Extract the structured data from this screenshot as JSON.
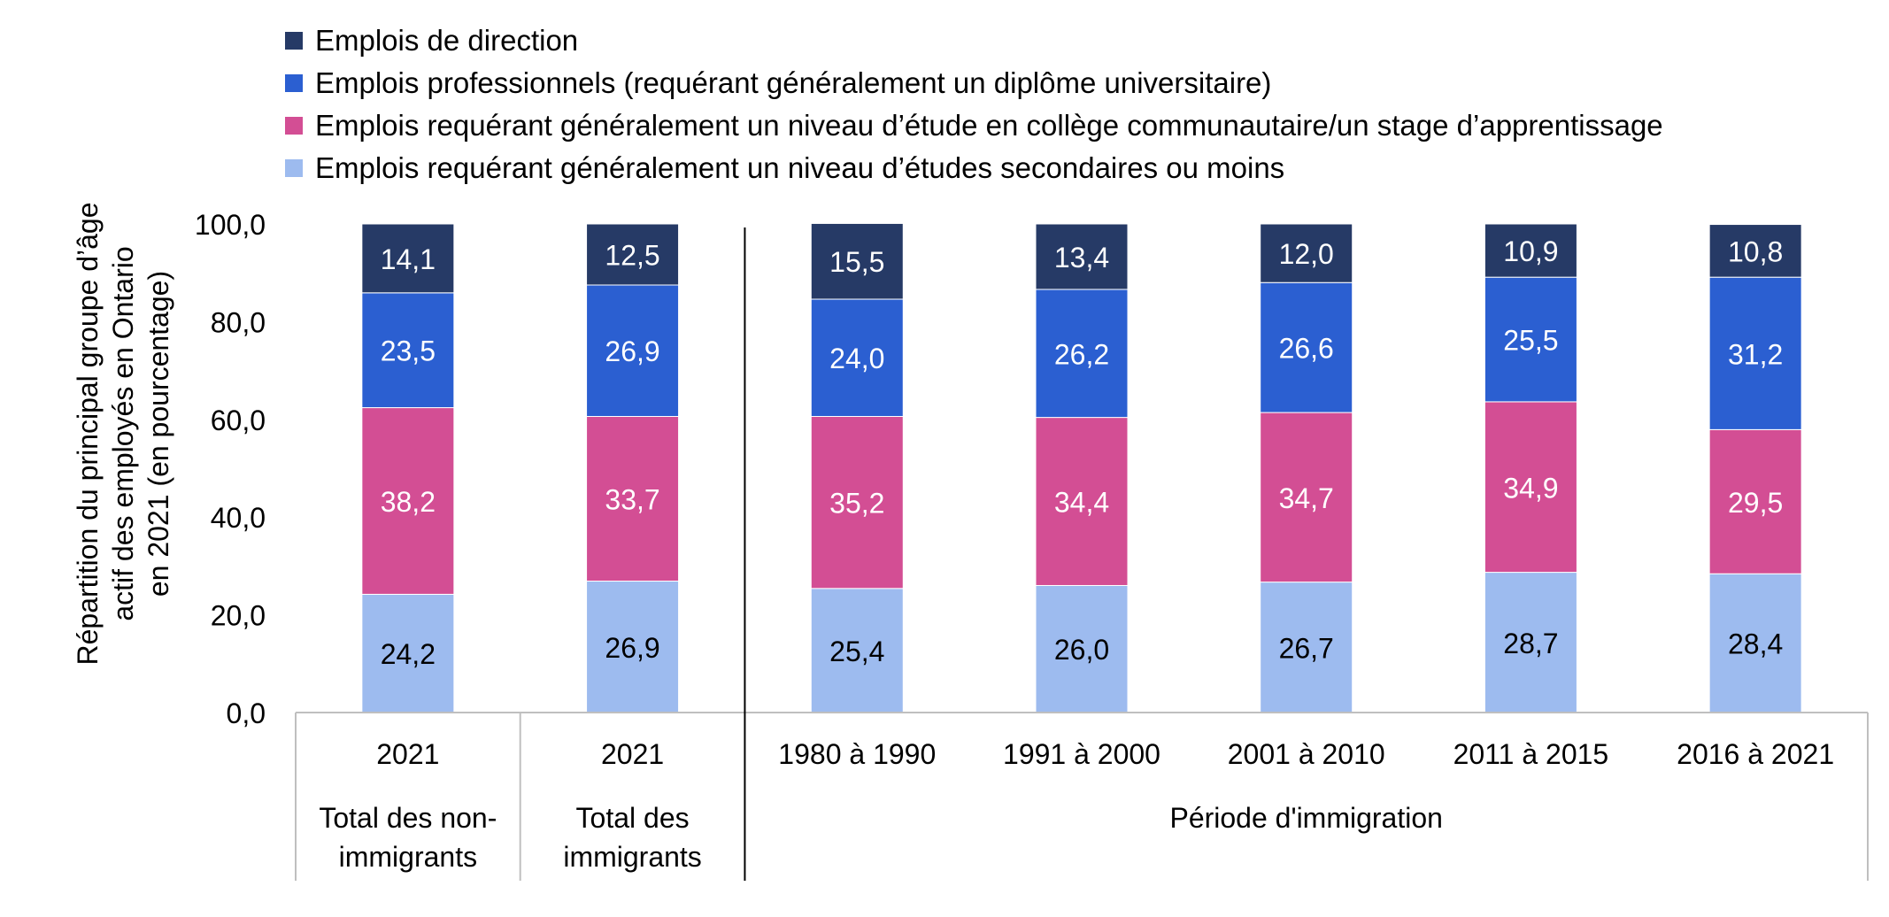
{
  "chart_data": {
    "type": "bar",
    "stacked": true,
    "ylabel": "Répartition du principal groupe d’âge actif des employés en Ontario en 2021 (en pourcentage)",
    "ylabel_lines": [
      "Répartition du principal groupe d’âge",
      "actif des employés en Ontario",
      "en 2021 (en pourcentage)"
    ],
    "ylim": [
      0,
      100
    ],
    "yticks": [
      "0,0",
      "20,0",
      "40,0",
      "60,0",
      "80,0",
      "100,0"
    ],
    "categories": [
      "2021",
      "2021",
      "1980 à 1990",
      "1991 à 2000",
      "2001 à 2010",
      "2011 à 2015",
      "2016 à 2021"
    ],
    "groups": [
      {
        "label_lines": [
          "Total des non-",
          "immigrants"
        ],
        "span": 1
      },
      {
        "label_lines": [
          "Total des",
          "immigrants"
        ],
        "span": 1
      },
      {
        "label_lines": [
          "Période d'immigration"
        ],
        "span": 5
      }
    ],
    "series": [
      {
        "name": "Emplois requérant généralement un niveau d’études secondaires ou moins",
        "color": "#9dbbef",
        "values": [
          24.2,
          26.9,
          25.4,
          26.0,
          26.7,
          28.7,
          28.4
        ],
        "labels": [
          "24,2",
          "26,9",
          "25,4",
          "26,0",
          "26,7",
          "28,7",
          "28,4"
        ]
      },
      {
        "name": "Emplois requérant généralement un niveau d’étude en collège communautaire/un stage d’apprentissage",
        "color": "#d34e94",
        "values": [
          38.2,
          33.7,
          35.2,
          34.4,
          34.7,
          34.9,
          29.5
        ],
        "labels": [
          "38,2",
          "33,7",
          "35,2",
          "34,4",
          "34,7",
          "34,9",
          "29,5"
        ]
      },
      {
        "name": "Emplois professionnels (requérant généralement un diplôme universitaire)",
        "color": "#2b5fd1",
        "values": [
          23.5,
          26.9,
          24.0,
          26.2,
          26.6,
          25.5,
          31.2
        ],
        "labels": [
          "23,5",
          "26,9",
          "24,0",
          "26,2",
          "26,6",
          "25,5",
          "31,2"
        ]
      },
      {
        "name": "Emplois de direction",
        "color": "#263a66",
        "values": [
          14.1,
          12.5,
          15.5,
          13.4,
          12.0,
          10.9,
          10.8
        ],
        "labels": [
          "14,1",
          "12,5",
          "15,5",
          "13,4",
          "12,0",
          "10,9",
          "10,8"
        ]
      }
    ],
    "label_colors": [
      "#000000",
      "#ffffff",
      "#ffffff",
      "#ffffff"
    ],
    "legend": {
      "position": "top",
      "order": [
        3,
        2,
        1,
        0
      ]
    },
    "grid": false
  }
}
